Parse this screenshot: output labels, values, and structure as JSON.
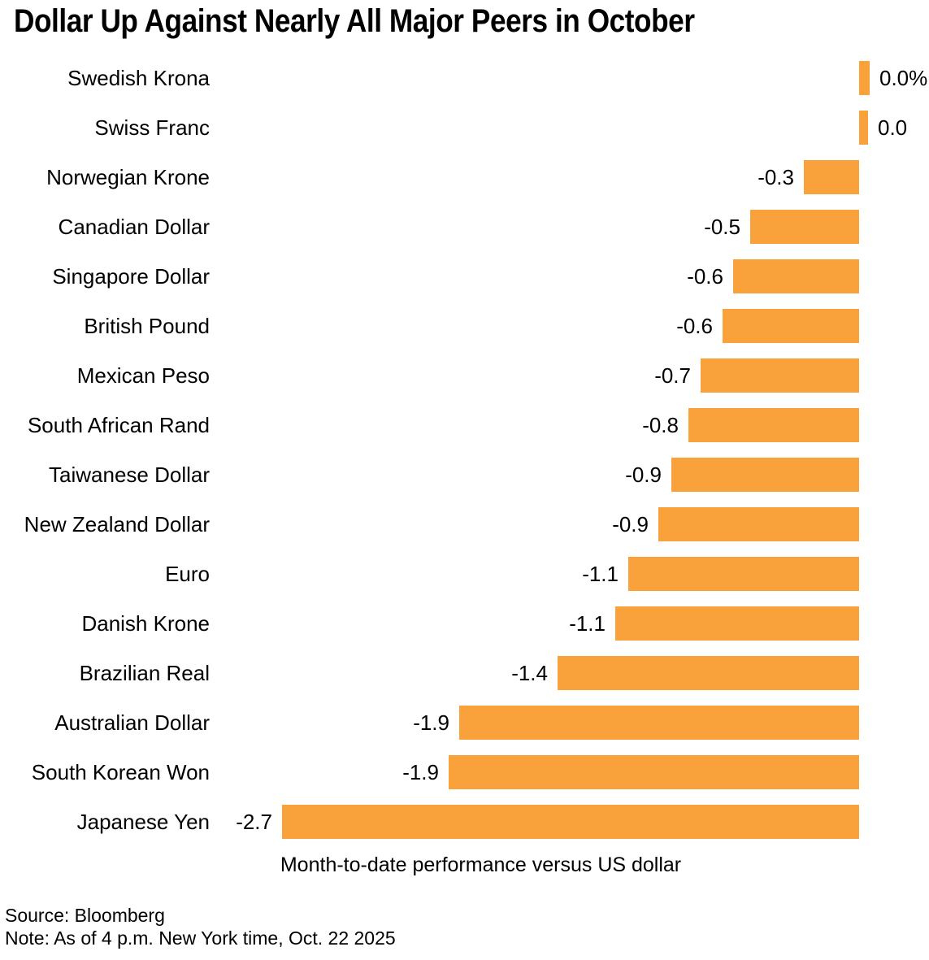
{
  "page": {
    "title": "Dollar Up Against Nearly All Major Peers in October"
  },
  "chart_data": {
    "type": "bar",
    "orientation": "horizontal",
    "title": "Dollar Up Against Nearly All Major Peers in October",
    "xlabel": "Month-to-date performance versus US dollar",
    "unit": "%",
    "xlim": [
      -2.8,
      0.3
    ],
    "grid": false,
    "legend": "none",
    "bar_color": "#F9A23B",
    "categories": [
      "Swedish Krona",
      "Swiss Franc",
      "Norwegian Krone",
      "Canadian Dollar",
      "Singapore Dollar",
      "British Pound",
      "Mexican Peso",
      "South African Rand",
      "Taiwanese Dollar",
      "New Zealand Dollar",
      "Euro",
      "Danish Krone",
      "Brazilian Real",
      "Australian Dollar",
      "South Korean Won",
      "Japanese Yen"
    ],
    "values": [
      0.05,
      0.04,
      -0.26,
      -0.51,
      -0.59,
      -0.64,
      -0.74,
      -0.8,
      -0.88,
      -0.94,
      -1.08,
      -1.14,
      -1.41,
      -1.87,
      -1.92,
      -2.7
    ],
    "labels": [
      "0.0%",
      "0.0",
      "-0.3",
      "-0.5",
      "-0.6",
      "-0.6",
      "-0.7",
      "-0.8",
      "-0.9",
      "-0.9",
      "-1.1",
      "-1.1",
      "-1.4",
      "-1.9",
      "-1.9",
      "-2.7"
    ]
  },
  "footer": {
    "source": "Source: Bloomberg",
    "note": "Note: As of 4 p.m. New York time, Oct. 22 2025"
  }
}
